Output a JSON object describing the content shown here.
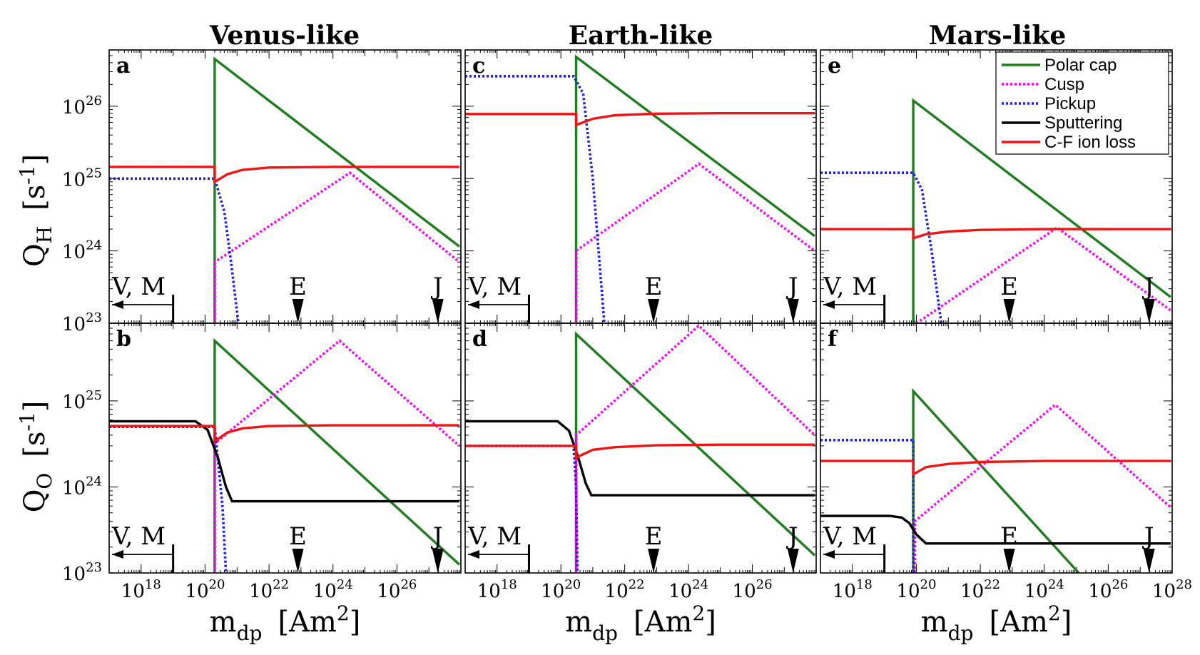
{
  "figure": {
    "columns": [
      {
        "title": "Venus-like"
      },
      {
        "title": "Earth-like"
      },
      {
        "title": "Mars-like"
      }
    ],
    "row_labels": [
      {
        "main": "Q",
        "sub": "H",
        "unit": "[s",
        "unit_sup": "-1",
        "unit_end": "]"
      },
      {
        "main": "Q",
        "sub": "O",
        "unit": "[s",
        "unit_sup": "-1",
        "unit_end": "]"
      }
    ],
    "x_label": {
      "main": "m",
      "sub": "dp",
      "unit": "[Am",
      "unit_sup": "2",
      "unit_end": "]"
    },
    "markers": {
      "vm": "V, M",
      "e": "E",
      "j": "J"
    }
  },
  "colors": {
    "Polar cap": "#1e7d1e",
    "Cusp": "#ff00ff",
    "Pickup": "#1f1fe0",
    "Sputtering": "#000000",
    "C-F ion loss": "#f01414"
  },
  "chart_data": [
    {
      "type": "line",
      "panel": "a",
      "column": "Venus-like",
      "quantity": "QH",
      "x_scale": "log",
      "y_scale": "log",
      "xlim": [
        1e+17,
        1e+28
      ],
      "ylim": [
        1e+23,
        6e+26
      ],
      "x_ticks": [
        {
          "value": 1e+18,
          "base": "10",
          "exp": "18"
        },
        {
          "value": 1e+20,
          "base": "10",
          "exp": "20"
        },
        {
          "value": 1e+22,
          "base": "10",
          "exp": "22"
        },
        {
          "value": 1e+24,
          "base": "10",
          "exp": "24"
        },
        {
          "value": 1e+26,
          "base": "10",
          "exp": "26"
        }
      ],
      "y_ticks": [
        {
          "value": 1e+23,
          "base": "10",
          "exp": "23"
        },
        {
          "value": 1e+24,
          "base": "10",
          "exp": "24"
        },
        {
          "value": 1e+25,
          "base": "10",
          "exp": "25"
        },
        {
          "value": 1e+26,
          "base": "10",
          "exp": "26"
        }
      ],
      "series": [
        {
          "name": "Polar cap",
          "style": "solid",
          "x": [
            2e+20,
            2e+20,
            9e+27
          ],
          "y": [
            1e+23,
            4.5e+26,
            1.15e+24
          ]
        },
        {
          "name": "Cusp",
          "style": "dotted",
          "x": [
            2e+20,
            2e+20,
            3.4e+24,
            9e+27
          ],
          "y": [
            1e+23,
            7e+23,
            1.2e+25,
            7e+23
          ]
        },
        {
          "name": "Pickup",
          "style": "dotted",
          "x": [
            1e+17,
            2e+20,
            4e+20,
            6.5e+20,
            1.1e+21
          ],
          "y": [
            1e+25,
            1e+25,
            3.5e+24,
            7e+23,
            1e+23
          ]
        },
        {
          "name": "C-F ion loss",
          "style": "solid",
          "x": [
            1e+17,
            2e+20,
            2e+20,
            5e+20,
            1.5e+21,
            1e+22,
            1e+24,
            9e+27
          ],
          "y": [
            1.45e+25,
            1.45e+25,
            9e+24,
            1.15e+25,
            1.32e+25,
            1.42e+25,
            1.45e+25,
            1.45e+25
          ]
        }
      ]
    },
    {
      "type": "line",
      "panel": "b",
      "column": "Venus-like",
      "quantity": "QO",
      "x_scale": "log",
      "y_scale": "log",
      "xlim": [
        1e+17,
        1e+28
      ],
      "ylim": [
        1e+23,
        8e+25
      ],
      "x_ticks": [
        {
          "value": 1e+18,
          "base": "10",
          "exp": "18"
        },
        {
          "value": 1e+20,
          "base": "10",
          "exp": "20"
        },
        {
          "value": 1e+22,
          "base": "10",
          "exp": "22"
        },
        {
          "value": 1e+24,
          "base": "10",
          "exp": "24"
        },
        {
          "value": 1e+26,
          "base": "10",
          "exp": "26"
        }
      ],
      "y_ticks": [
        {
          "value": 1e+23,
          "base": "10",
          "exp": "23"
        },
        {
          "value": 1e+24,
          "base": "10",
          "exp": "24"
        },
        {
          "value": 1e+25,
          "base": "10",
          "exp": "25"
        }
      ],
      "series": [
        {
          "name": "Polar cap",
          "style": "solid",
          "x": [
            2e+20,
            2e+20,
            9e+27
          ],
          "y": [
            1e+23,
            5e+25,
            1.25e+23
          ]
        },
        {
          "name": "Cusp",
          "style": "dotted",
          "x": [
            2e+20,
            2e+20,
            1.6e+24,
            9e+27
          ],
          "y": [
            1e+23,
            3.2e+24,
            5e+25,
            3e+24
          ]
        },
        {
          "name": "Pickup",
          "style": "dotted",
          "x": [
            1e+17,
            2e+20,
            3.5e+20,
            4.5e+20
          ],
          "y": [
            5e+24,
            5e+24,
            6e+23,
            1e+23
          ]
        },
        {
          "name": "Sputtering",
          "style": "solid",
          "x": [
            1e+17,
            5e+19,
            1.2e+20,
            2.5e+20,
            4.5e+20,
            7e+20,
            9e+27
          ],
          "y": [
            5.8e+24,
            5.8e+24,
            4.6e+24,
            2.2e+24,
            1e+24,
            6.8e+23,
            6.8e+23
          ]
        },
        {
          "name": "C-F ion loss",
          "style": "solid",
          "x": [
            1e+17,
            2e+20,
            2e+20,
            5e+20,
            1.5e+21,
            1e+22,
            1e+24,
            9e+27
          ],
          "y": [
            5.1e+24,
            5.1e+24,
            3.4e+24,
            4.3e+24,
            4.8e+24,
            5.1e+24,
            5.2e+24,
            5.2e+24
          ]
        }
      ]
    },
    {
      "type": "line",
      "panel": "c",
      "column": "Earth-like",
      "quantity": "QH",
      "x_scale": "log",
      "y_scale": "log",
      "xlim": [
        1e+17,
        1e+28
      ],
      "ylim": [
        1e+23,
        6e+26
      ],
      "x_ticks": [
        {
          "value": 1e+18,
          "base": "10",
          "exp": "18"
        },
        {
          "value": 1e+20,
          "base": "10",
          "exp": "20"
        },
        {
          "value": 1e+22,
          "base": "10",
          "exp": "22"
        },
        {
          "value": 1e+24,
          "base": "10",
          "exp": "24"
        },
        {
          "value": 1e+26,
          "base": "10",
          "exp": "26"
        }
      ],
      "y_ticks": [
        {
          "value": 1e+23,
          "base": "10",
          "exp": "23"
        },
        {
          "value": 1e+24,
          "base": "10",
          "exp": "24"
        },
        {
          "value": 1e+25,
          "base": "10",
          "exp": "25"
        },
        {
          "value": 1e+26,
          "base": "10",
          "exp": "26"
        }
      ],
      "series": [
        {
          "name": "Polar cap",
          "style": "solid",
          "x": [
            3e+20,
            3e+20,
            9e+27
          ],
          "y": [
            1e+23,
            4.8e+26,
            1.6e+24
          ]
        },
        {
          "name": "Cusp",
          "style": "dotted",
          "x": [
            3e+20,
            3e+20,
            2.1e+24,
            9e+27
          ],
          "y": [
            1e+23,
            1e+24,
            1.6e+25,
            1e+24
          ]
        },
        {
          "name": "Pickup",
          "style": "dotted",
          "x": [
            1e+17,
            2.5e+20,
            5e+20,
            1e+21,
            2.3e+21
          ],
          "y": [
            2.6e+26,
            2.6e+26,
            1.5e+26,
            1e+25,
            1e+23
          ]
        },
        {
          "name": "C-F ion loss",
          "style": "solid",
          "x": [
            1e+17,
            3e+20,
            3e+20,
            1e+21,
            5e+21,
            1e+23,
            1e+25,
            9e+27
          ],
          "y": [
            7.8e+25,
            7.8e+25,
            5.5e+25,
            6.7e+25,
            7.5e+25,
            7.9e+25,
            8e+25,
            8e+25
          ]
        }
      ]
    },
    {
      "type": "line",
      "panel": "d",
      "column": "Earth-like",
      "quantity": "QO",
      "x_scale": "log",
      "y_scale": "log",
      "xlim": [
        1e+17,
        1e+28
      ],
      "ylim": [
        1e+23,
        8e+25
      ],
      "x_ticks": [
        {
          "value": 1e+18,
          "base": "10",
          "exp": "18"
        },
        {
          "value": 1e+20,
          "base": "10",
          "exp": "20"
        },
        {
          "value": 1e+22,
          "base": "10",
          "exp": "22"
        },
        {
          "value": 1e+24,
          "base": "10",
          "exp": "24"
        },
        {
          "value": 1e+26,
          "base": "10",
          "exp": "26"
        }
      ],
      "y_ticks": [
        {
          "value": 1e+23,
          "base": "10",
          "exp": "23"
        },
        {
          "value": 1e+24,
          "base": "10",
          "exp": "24"
        },
        {
          "value": 1e+25,
          "base": "10",
          "exp": "25"
        }
      ],
      "series": [
        {
          "name": "Polar cap",
          "style": "solid",
          "x": [
            3e+20,
            3e+20,
            9e+27
          ],
          "y": [
            1e+23,
            6e+25,
            1.6e+23
          ]
        },
        {
          "name": "Cusp",
          "style": "dotted",
          "x": [
            3e+20,
            3e+20,
            2.1e+24,
            9e+27
          ],
          "y": [
            1e+23,
            4e+24,
            7.5e+25,
            4e+24
          ]
        },
        {
          "name": "Pickup",
          "style": "dotted",
          "x": [
            1e+17,
            2.5e+20,
            3e+20,
            3.3e+20
          ],
          "y": [
            3e+24,
            3e+24,
            1e+24,
            1e+23
          ]
        },
        {
          "name": "Sputtering",
          "style": "solid",
          "x": [
            1e+17,
            8e+19,
            1.8e+20,
            3.5e+20,
            6e+20,
            9e+20,
            9e+27
          ],
          "y": [
            5.8e+24,
            5.8e+24,
            4.5e+24,
            2.2e+24,
            1.1e+24,
            8e+23,
            8e+23
          ]
        },
        {
          "name": "C-F ion loss",
          "style": "solid",
          "x": [
            1e+17,
            3e+20,
            3e+20,
            1e+21,
            5e+21,
            1e+23,
            1e+25,
            9e+27
          ],
          "y": [
            3e+24,
            3e+24,
            2.2e+24,
            2.7e+24,
            2.9e+24,
            3.05e+24,
            3.1e+24,
            3.1e+24
          ]
        }
      ]
    },
    {
      "type": "line",
      "panel": "e",
      "column": "Mars-like",
      "quantity": "QH",
      "x_scale": "log",
      "y_scale": "log",
      "xlim": [
        1e+17,
        1e+28
      ],
      "ylim": [
        1e+23,
        6e+26
      ],
      "x_ticks": [
        {
          "value": 1e+18,
          "base": "10",
          "exp": "18"
        },
        {
          "value": 1e+20,
          "base": "10",
          "exp": "20"
        },
        {
          "value": 1e+22,
          "base": "10",
          "exp": "22"
        },
        {
          "value": 1e+24,
          "base": "10",
          "exp": "24"
        },
        {
          "value": 1e+26,
          "base": "10",
          "exp": "26"
        },
        {
          "value": 1e+28,
          "base": "10",
          "exp": "28"
        }
      ],
      "y_ticks": [
        {
          "value": 1e+23,
          "base": "10",
          "exp": "23"
        },
        {
          "value": 1e+24,
          "base": "10",
          "exp": "24"
        },
        {
          "value": 1e+25,
          "base": "10",
          "exp": "25"
        },
        {
          "value": 1e+26,
          "base": "10",
          "exp": "26"
        }
      ],
      "series": [
        {
          "name": "Polar cap",
          "style": "solid",
          "x": [
            8e+19,
            8e+19,
            9e+27
          ],
          "y": [
            1e+23,
            1.2e+26,
            2.3e+23
          ]
        },
        {
          "name": "Cusp",
          "style": "dotted",
          "x": [
            1e+20,
            2.5e+24,
            9e+27
          ],
          "y": [
            1e+23,
            2.1e+24,
            1.5e+23
          ]
        },
        {
          "name": "Pickup",
          "style": "dotted",
          "x": [
            1e+17,
            8e+19,
            1.5e+20,
            3e+20,
            6e+20
          ],
          "y": [
            1.2e+25,
            1.2e+25,
            7e+24,
            1e+24,
            1e+23
          ]
        },
        {
          "name": "C-F ion loss",
          "style": "solid",
          "x": [
            1e+17,
            8e+19,
            8e+19,
            2e+20,
            1e+21,
            1e+22,
            1e+24,
            9e+27
          ],
          "y": [
            2e+24,
            2e+24,
            1.5e+24,
            1.7e+24,
            1.85e+24,
            1.95e+24,
            2e+24,
            2e+24
          ]
        }
      ]
    },
    {
      "type": "line",
      "panel": "f",
      "column": "Mars-like",
      "quantity": "QO",
      "x_scale": "log",
      "y_scale": "log",
      "xlim": [
        1e+17,
        1e+28
      ],
      "ylim": [
        1e+23,
        8e+25
      ],
      "x_ticks": [
        {
          "value": 1e+18,
          "base": "10",
          "exp": "18"
        },
        {
          "value": 1e+20,
          "base": "10",
          "exp": "20"
        },
        {
          "value": 1e+22,
          "base": "10",
          "exp": "22"
        },
        {
          "value": 1e+24,
          "base": "10",
          "exp": "24"
        },
        {
          "value": 1e+26,
          "base": "10",
          "exp": "26"
        },
        {
          "value": 1e+28,
          "base": "10",
          "exp": "28"
        }
      ],
      "y_ticks": [
        {
          "value": 1e+23,
          "base": "10",
          "exp": "23"
        },
        {
          "value": 1e+24,
          "base": "10",
          "exp": "24"
        },
        {
          "value": 1e+25,
          "base": "10",
          "exp": "25"
        }
      ],
      "series": [
        {
          "name": "Polar cap",
          "style": "solid",
          "x": [
            8e+19,
            8e+19,
            1.2e+25
          ],
          "y": [
            1e+23,
            1.3e+25,
            1e+23
          ]
        },
        {
          "name": "Cusp",
          "style": "dotted",
          "x": [
            9e+19,
            9e+19,
            2.2e+24,
            9e+27
          ],
          "y": [
            1e+23,
            4e+23,
            9e+24,
            5.8e+23
          ]
        },
        {
          "name": "Pickup",
          "style": "dotted",
          "x": [
            1e+17,
            8e+19,
            8e+19
          ],
          "y": [
            3.5e+24,
            3.5e+24,
            1e+23
          ]
        },
        {
          "name": "Sputtering",
          "style": "solid",
          "x": [
            1e+17,
            1.5e+19,
            3.5e+19,
            6e+19,
            1e+20,
            2e+20,
            9e+27
          ],
          "y": [
            4.6e+23,
            4.6e+23,
            4.4e+23,
            3.8e+23,
            2.8e+23,
            2.2e+23,
            2.2e+23
          ]
        },
        {
          "name": "C-F ion loss",
          "style": "solid",
          "x": [
            1e+17,
            8e+19,
            8e+19,
            2e+20,
            1e+21,
            1e+22,
            1e+24,
            9e+27
          ],
          "y": [
            2e+24,
            2e+24,
            1.4e+24,
            1.7e+24,
            1.85e+24,
            1.95e+24,
            2e+24,
            2e+24
          ]
        }
      ]
    }
  ],
  "legend": {
    "placement": "top-right of panel e",
    "entries": [
      {
        "label": "Polar cap",
        "style": "solid"
      },
      {
        "label": "Cusp",
        "style": "dotted"
      },
      {
        "label": "Pickup",
        "style": "dotted"
      },
      {
        "label": "Sputtering",
        "style": "solid"
      },
      {
        "label": "C-F ion loss",
        "style": "solid"
      }
    ]
  }
}
